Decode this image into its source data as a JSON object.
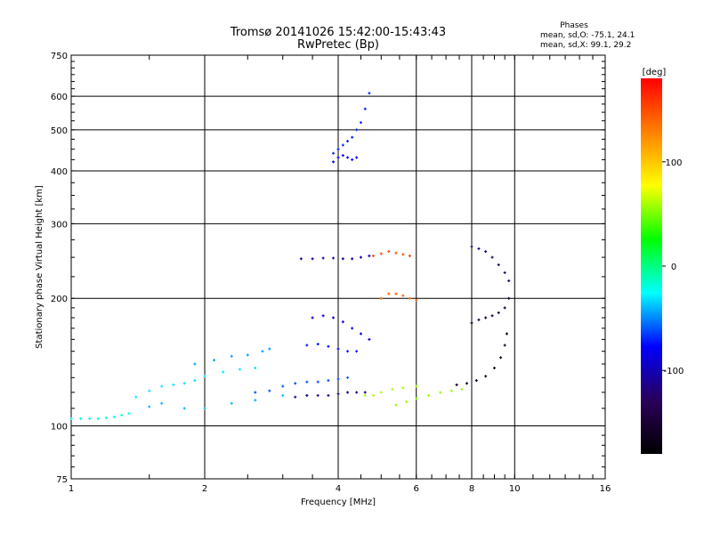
{
  "chart_data": {
    "type": "scatter",
    "title": "Tromsø 20141026 15:42:00-15:43:43",
    "subtitle": "RwPretec (Bp)",
    "xlabel": "Frequency [MHz]",
    "ylabel": "Stationary phase Virtual Height [km]",
    "xscale": "log",
    "yscale": "log",
    "xlim": [
      1,
      16
    ],
    "ylim": [
      75,
      750
    ],
    "x_ticks": [
      1,
      2,
      4,
      6,
      8,
      10,
      16
    ],
    "x_gridlines": [
      2,
      4,
      6,
      8,
      10
    ],
    "y_ticks": [
      75,
      100,
      200,
      300,
      400,
      500,
      600,
      750
    ],
    "y_gridlines": [
      100,
      200,
      300,
      400,
      500,
      600
    ],
    "grid": true,
    "phases_box": {
      "title": "Phases",
      "line_o": "mean, sd,O: -75.1, 24.1",
      "line_x": "mean, sd,X: 99.1, 29.2"
    },
    "colorbar": {
      "label": "[deg]",
      "min": -180,
      "max": 180,
      "ticks": [
        100,
        0,
        -100
      ],
      "colors": [
        "#000000",
        "#2a005a",
        "#0000ff",
        "#00ffff",
        "#00ff00",
        "#ffff00",
        "#ff8000",
        "#ff0000"
      ]
    },
    "traces": [
      {
        "name": "",
        "phase": -20,
        "points": [
          [
            1.0,
            104
          ],
          [
            1.05,
            104
          ],
          [
            1.1,
            104
          ],
          [
            1.15,
            104
          ],
          [
            1.2,
            104.5
          ],
          [
            1.25,
            105
          ],
          [
            1.3,
            106
          ],
          [
            1.35,
            107
          ]
        ]
      },
      {
        "name": "",
        "phase": -30,
        "points": [
          [
            1.4,
            117
          ],
          [
            1.5,
            121
          ],
          [
            1.6,
            124
          ],
          [
            1.7,
            125
          ],
          [
            1.8,
            126
          ],
          [
            1.9,
            128
          ],
          [
            2.0,
            131
          ],
          [
            2.2,
            134
          ],
          [
            2.4,
            136
          ],
          [
            2.6,
            137
          ]
        ]
      },
      {
        "name": "",
        "phase": -40,
        "points": [
          [
            1.5,
            111
          ],
          [
            1.6,
            113
          ],
          [
            1.8,
            110
          ],
          [
            2.0,
            110
          ],
          [
            2.3,
            113
          ],
          [
            2.6,
            115
          ],
          [
            3.0,
            118
          ],
          [
            3.4,
            118
          ]
        ]
      },
      {
        "name": "",
        "phase": -45,
        "points": [
          [
            1.9,
            140
          ],
          [
            2.1,
            143
          ],
          [
            2.3,
            146
          ],
          [
            2.5,
            147
          ],
          [
            2.7,
            150
          ],
          [
            2.8,
            152
          ]
        ]
      },
      {
        "name": "",
        "phase": -60,
        "points": [
          [
            2.6,
            120
          ],
          [
            2.8,
            121
          ],
          [
            3.0,
            124
          ],
          [
            3.2,
            126
          ],
          [
            3.4,
            127
          ],
          [
            3.6,
            127
          ],
          [
            3.8,
            128
          ],
          [
            4.0,
            129
          ],
          [
            4.2,
            130
          ]
        ]
      },
      {
        "name": "",
        "phase": -115,
        "points": [
          [
            3.2,
            117
          ],
          [
            3.4,
            118
          ],
          [
            3.6,
            118
          ],
          [
            3.8,
            118
          ],
          [
            4.0,
            119
          ],
          [
            4.2,
            120
          ],
          [
            4.4,
            120
          ],
          [
            4.6,
            120
          ]
        ]
      },
      {
        "name": "",
        "phase": -105,
        "points": [
          [
            3.3,
            248
          ],
          [
            3.5,
            248
          ],
          [
            3.7,
            249
          ],
          [
            3.9,
            249
          ],
          [
            4.1,
            248
          ],
          [
            4.3,
            248
          ],
          [
            4.5,
            250
          ],
          [
            4.7,
            252
          ]
        ]
      },
      {
        "name": "",
        "phase": -90,
        "points": [
          [
            3.5,
            180
          ],
          [
            3.7,
            182
          ],
          [
            3.9,
            180
          ],
          [
            4.1,
            176
          ],
          [
            4.3,
            170
          ],
          [
            4.5,
            165
          ],
          [
            4.7,
            160
          ]
        ]
      },
      {
        "name": "",
        "phase": -75,
        "points": [
          [
            3.4,
            155
          ],
          [
            3.6,
            156
          ],
          [
            3.8,
            154
          ],
          [
            4.0,
            152
          ],
          [
            4.2,
            150
          ],
          [
            4.4,
            150
          ]
        ]
      },
      {
        "name": "",
        "phase": -70,
        "points": [
          [
            3.9,
            440
          ],
          [
            4.0,
            450
          ],
          [
            4.1,
            460
          ],
          [
            4.2,
            470
          ],
          [
            4.3,
            480
          ],
          [
            4.4,
            500
          ],
          [
            4.5,
            520
          ],
          [
            4.6,
            560
          ],
          [
            4.7,
            610
          ]
        ]
      },
      {
        "name": "",
        "phase": -80,
        "points": [
          [
            3.9,
            420
          ],
          [
            4.0,
            430
          ],
          [
            4.1,
            435
          ],
          [
            4.2,
            430
          ],
          [
            4.3,
            425
          ],
          [
            4.4,
            430
          ]
        ]
      },
      {
        "name": "",
        "phase": 60,
        "points": [
          [
            4.6,
            118
          ],
          [
            4.8,
            118
          ],
          [
            5.0,
            120
          ],
          [
            5.3,
            122
          ],
          [
            5.6,
            123
          ],
          [
            6.0,
            124
          ]
        ]
      },
      {
        "name": "",
        "phase": 150,
        "points": [
          [
            4.8,
            252
          ],
          [
            5.0,
            255
          ],
          [
            5.2,
            258
          ],
          [
            5.4,
            256
          ],
          [
            5.6,
            254
          ],
          [
            5.8,
            252
          ]
        ]
      },
      {
        "name": "",
        "phase": 140,
        "points": [
          [
            5.0,
            200
          ],
          [
            5.2,
            205
          ],
          [
            5.4,
            205
          ],
          [
            5.6,
            203
          ],
          [
            5.8,
            200
          ],
          [
            6.0,
            198
          ]
        ]
      },
      {
        "name": "",
        "phase": 55,
        "points": [
          [
            5.4,
            112
          ],
          [
            5.7,
            114
          ],
          [
            6.0,
            116
          ],
          [
            6.4,
            118
          ],
          [
            6.8,
            120
          ],
          [
            7.2,
            121
          ],
          [
            7.6,
            122
          ]
        ]
      },
      {
        "name": "",
        "phase": -160,
        "points": [
          [
            7.4,
            125
          ],
          [
            7.8,
            126
          ],
          [
            8.2,
            128
          ],
          [
            8.6,
            131
          ],
          [
            9.0,
            137
          ],
          [
            9.3,
            145
          ],
          [
            9.5,
            155
          ],
          [
            9.6,
            165
          ]
        ]
      },
      {
        "name": "",
        "phase": -150,
        "points": [
          [
            8.0,
            175
          ],
          [
            8.3,
            178
          ],
          [
            8.6,
            180
          ],
          [
            8.9,
            182
          ],
          [
            9.2,
            185
          ],
          [
            9.5,
            190
          ],
          [
            9.7,
            200
          ]
        ]
      },
      {
        "name": "",
        "phase": -120,
        "points": [
          [
            8.0,
            265
          ],
          [
            8.3,
            262
          ],
          [
            8.6,
            258
          ],
          [
            8.9,
            250
          ],
          [
            9.2,
            240
          ],
          [
            9.5,
            230
          ],
          [
            9.7,
            220
          ]
        ]
      }
    ]
  }
}
